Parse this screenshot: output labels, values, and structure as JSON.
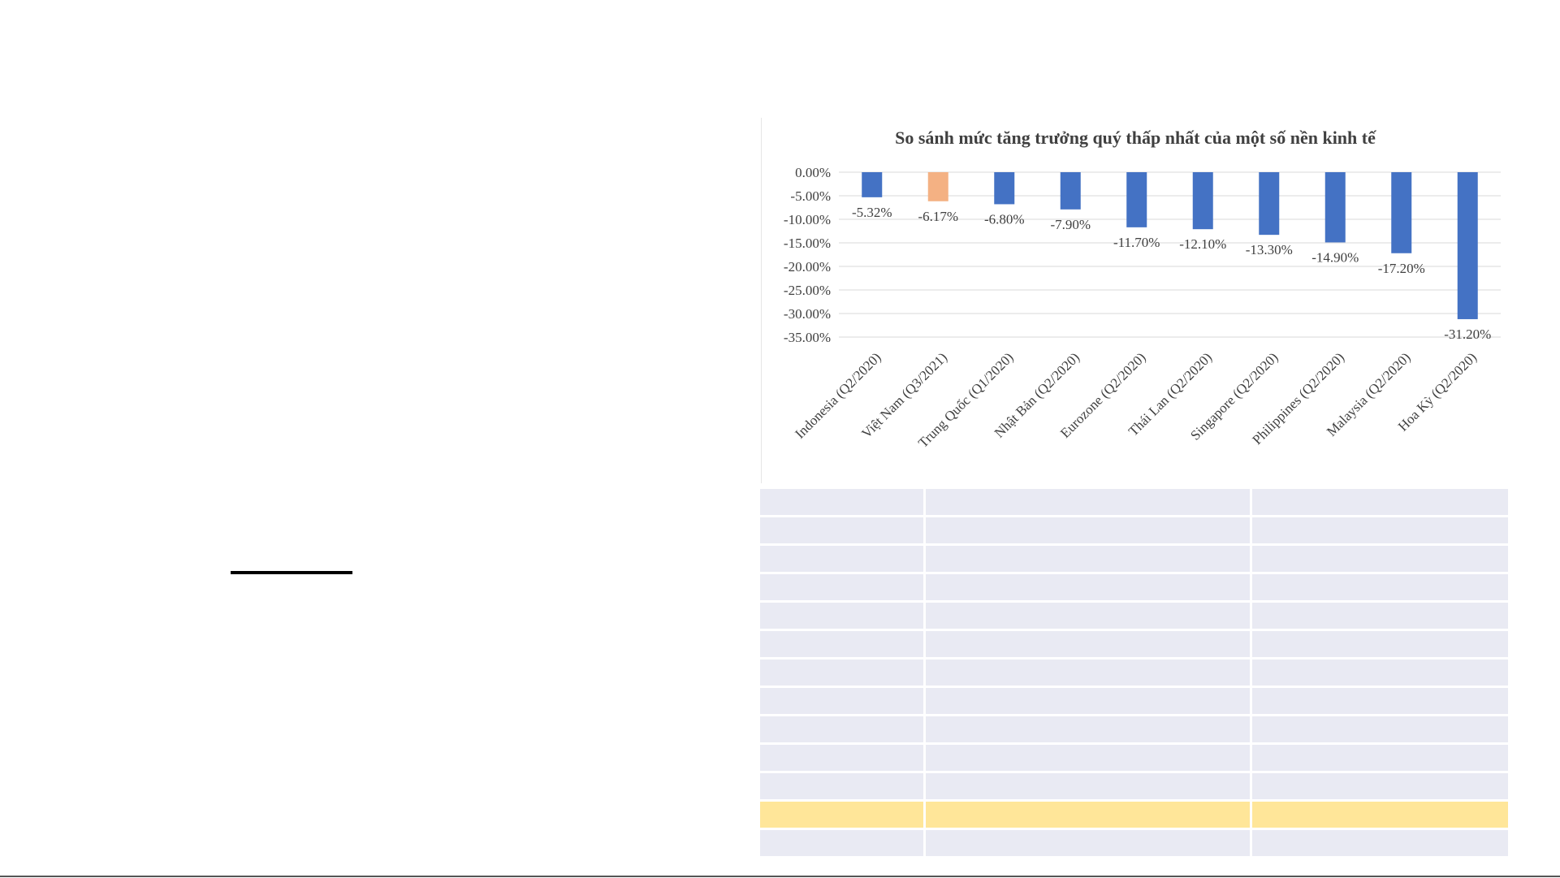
{
  "chart_data": {
    "type": "bar",
    "title": "So sánh mức tăng trưởng quý thấp nhất của một số nền kinh tế",
    "categories": [
      "Indonesia (Q2/2020)",
      "Việt Nam (Q3/2021)",
      "Trung Quốc (Q1/2020)",
      "Nhật Bản (Q2/2020)",
      "Eurozone (Q2/2020)",
      "Thái Lan (Q2/2020)",
      "Singapore (Q2/2020)",
      "Philippines (Q2/2020)",
      "Malaysia (Q2/2020)",
      "Hoa Kỳ (Q2/2020)"
    ],
    "values": [
      -5.32,
      -6.17,
      -6.8,
      -7.9,
      -11.7,
      -12.1,
      -13.3,
      -14.9,
      -17.2,
      -31.2
    ],
    "data_labels": [
      "-5.32%",
      "-6.17%",
      "-6.80%",
      "-7.90%",
      "-11.70%",
      "-12.10%",
      "-13.30%",
      "-14.90%",
      "-17.20%",
      "-31.20%"
    ],
    "ylim": [
      -35,
      0
    ],
    "yticks": [
      0,
      -5,
      -10,
      -15,
      -20,
      -25,
      -30,
      -35
    ],
    "ytick_labels": [
      "0.00%",
      "-5.00%",
      "-10.00%",
      "-15.00%",
      "-20.00%",
      "-25.00%",
      "-30.00%",
      "-35.00%"
    ],
    "grid": true,
    "colors": {
      "default": "#4472c4",
      "highlight": "#f4b183",
      "grid": "#d9d9d9",
      "text": "#404040"
    },
    "highlight_index": 1
  },
  "table": {
    "row_colors": [
      "#e9eaf3",
      "#e9eaf3",
      "#e9eaf3",
      "#e9eaf3",
      "#e9eaf3",
      "#e9eaf3",
      "#e9eaf3",
      "#e9eaf3",
      "#e9eaf3",
      "#e9eaf3",
      "#e9eaf3",
      "#ffe699",
      "#e9eaf3"
    ],
    "rows": [
      [
        "",
        "",
        ""
      ],
      [
        "",
        "",
        ""
      ],
      [
        "",
        "",
        ""
      ],
      [
        "",
        "",
        ""
      ],
      [
        "",
        "",
        ""
      ],
      [
        "",
        "",
        ""
      ],
      [
        "",
        "",
        ""
      ],
      [
        "",
        "",
        ""
      ],
      [
        "",
        "",
        ""
      ],
      [
        "",
        "",
        ""
      ],
      [
        "",
        "",
        ""
      ],
      [
        "",
        "",
        ""
      ],
      [
        "",
        "",
        ""
      ]
    ]
  }
}
